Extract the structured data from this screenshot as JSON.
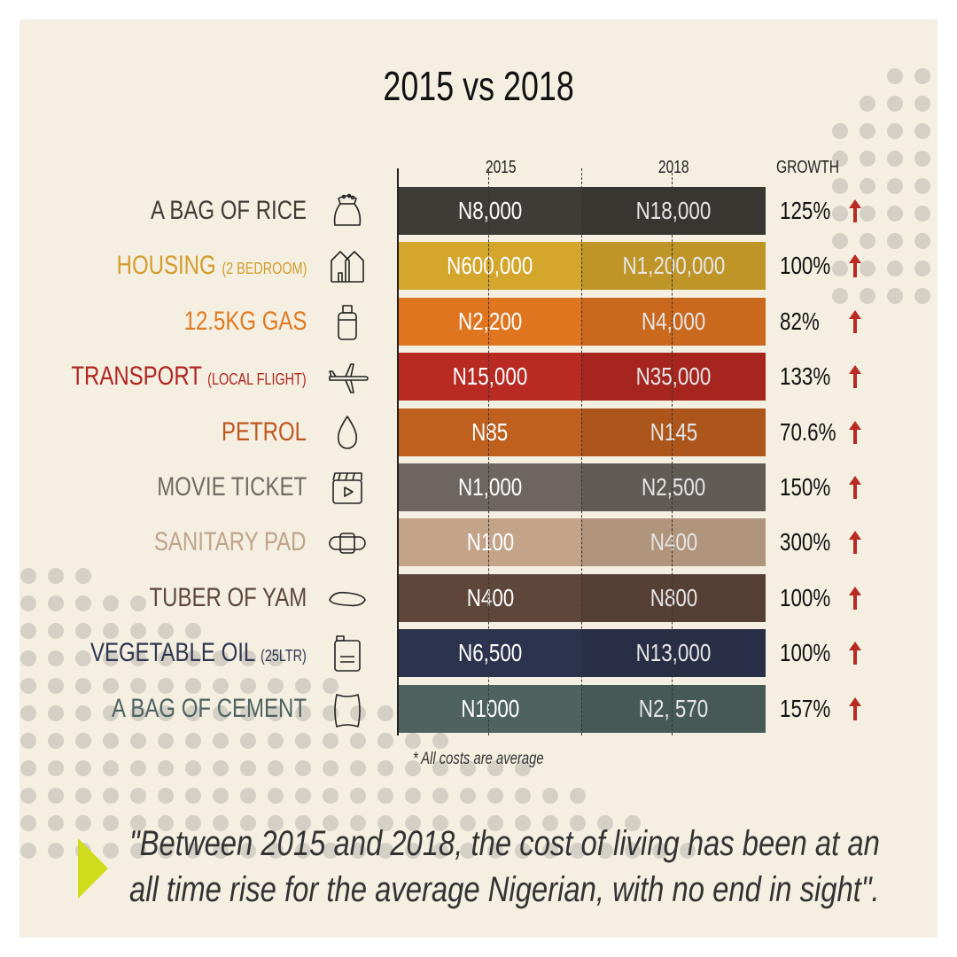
{
  "title": "2015 vs 2018",
  "columns": {
    "year_a": "2015",
    "year_b": "2018",
    "growth": "GROWTH"
  },
  "footnote": "* All costs are average",
  "quote": {
    "line1": "\"Between 2015 and 2018, the cost of living has been at an",
    "line2": "all time rise for the average Nigerian, with no end in sight\"."
  },
  "chart_data": {
    "type": "table",
    "title": "2015 vs 2018",
    "columns": [
      "2015",
      "2018",
      "GROWTH"
    ],
    "rows": [
      {
        "label": "A BAG OF RICE",
        "sub": "",
        "icon": "rice-bag-icon",
        "v2015": "N8,000",
        "v2018": "N18,000",
        "growth": "125%",
        "color": "#3f3c37",
        "label_color": "#3f3c37"
      },
      {
        "label": "HOUSING",
        "sub": "(2 BEDROOM)",
        "icon": "house-icon",
        "v2015": "N600,000",
        "v2018": "N1,200,000",
        "growth": "100%",
        "color": "#d4a62c",
        "label_color": "#d39c2c"
      },
      {
        "label": "12.5KG GAS",
        "sub": "",
        "icon": "gas-cylinder-icon",
        "v2015": "N2,200",
        "v2018": "N4,000",
        "growth": "82%",
        "color": "#e07520",
        "label_color": "#e07a22"
      },
      {
        "label": "TRANSPORT",
        "sub": "(LOCAL FLIGHT)",
        "icon": "airplane-icon",
        "v2015": "N15,000",
        "v2018": "N35,000",
        "growth": "133%",
        "color": "#b82a22",
        "label_color": "#b0241f"
      },
      {
        "label": "PETROL",
        "sub": "",
        "icon": "drop-icon",
        "v2015": "N85",
        "v2018": "N145",
        "growth": "70.6%",
        "color": "#c0601f",
        "label_color": "#c0561f"
      },
      {
        "label": "MOVIE TICKET",
        "sub": "",
        "icon": "clapperboard-icon",
        "v2015": "N1,000",
        "v2018": "N2,500",
        "growth": "150%",
        "color": "#6c6560",
        "label_color": "#706a64"
      },
      {
        "label": "SANITARY PAD",
        "sub": "",
        "icon": "sanitary-pad-icon",
        "v2015": "N100",
        "v2018": "N400",
        "growth": "300%",
        "color": "#c4a489",
        "label_color": "#c0a38a"
      },
      {
        "label": "TUBER OF YAM",
        "sub": "",
        "icon": "yam-icon",
        "v2015": "N400",
        "v2018": "N800",
        "growth": "100%",
        "color": "#5e463b",
        "label_color": "#5e463b"
      },
      {
        "label": "VEGETABLE OIL",
        "sub": "(25LTR)",
        "icon": "jerrycan-icon",
        "v2015": "N6,500",
        "v2018": "N13,000",
        "growth": "100%",
        "color": "#2c334e",
        "label_color": "#2e3652"
      },
      {
        "label": "A BAG OF CEMENT",
        "sub": "",
        "icon": "cement-bag-icon",
        "v2015": "N1000",
        "v2018": "N2, 570",
        "growth": "157%",
        "color": "#4e6360",
        "label_color": "#4e6360"
      }
    ]
  },
  "colors": {
    "background": "#f4efe1",
    "arrow": "#b82a22",
    "accent": "#cfdc1c",
    "dots": "#d4d0c6"
  }
}
